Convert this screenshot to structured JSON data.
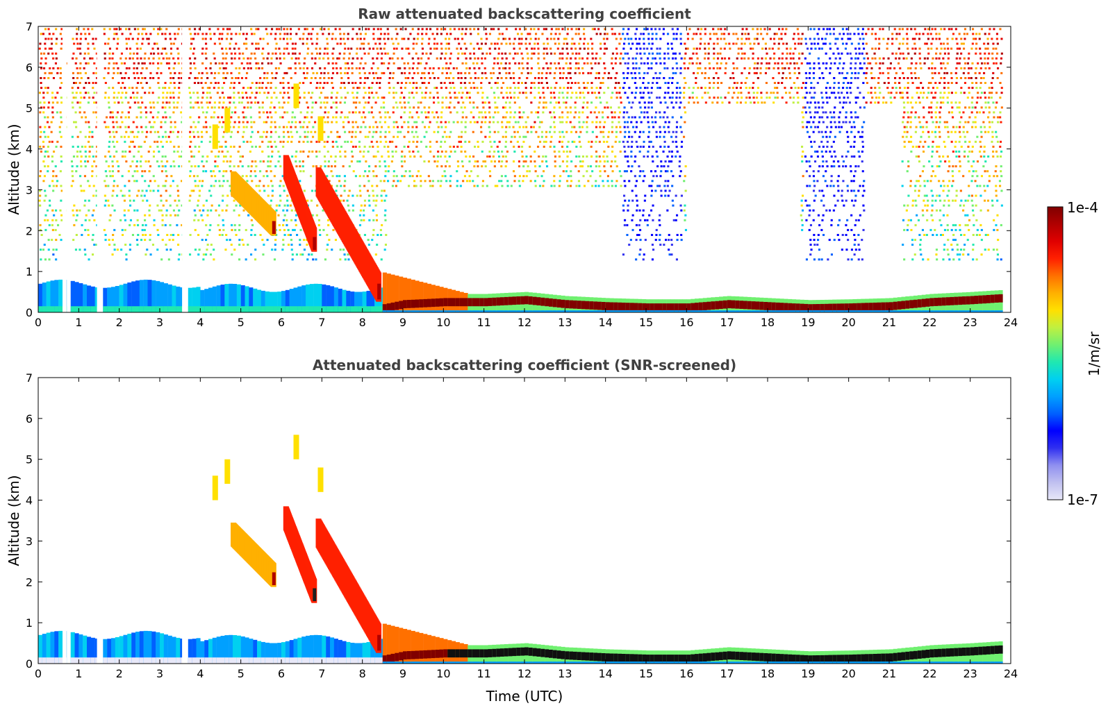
{
  "chart_data": [
    {
      "type": "heatmap",
      "title": "Raw attenuated backscattering coefficient",
      "xlabel": "",
      "ylabel": "Altitude (km)",
      "xlim": [
        0,
        24
      ],
      "ylim": [
        0,
        7
      ],
      "xticks": [
        "0",
        "1",
        "2",
        "3",
        "4",
        "5",
        "6",
        "7",
        "8",
        "9",
        "10",
        "11",
        "12",
        "13",
        "14",
        "15",
        "16",
        "17",
        "18",
        "19",
        "20",
        "21",
        "22",
        "23",
        "24"
      ],
      "yticks": [
        "0",
        "1",
        "2",
        "3",
        "4",
        "5",
        "6",
        "7"
      ],
      "features": {
        "boundary_layer": [
          [
            0,
            0.05
          ],
          [
            1,
            0.05
          ],
          [
            2,
            0.1
          ],
          [
            3,
            0.1
          ],
          [
            4,
            0.1
          ],
          [
            8.5,
            0.1
          ],
          [
            9,
            0.2
          ],
          [
            10,
            0.25
          ],
          [
            11,
            0.25
          ],
          [
            12,
            0.3
          ],
          [
            13,
            0.2
          ],
          [
            14,
            0.15
          ],
          [
            15,
            0.12
          ],
          [
            16,
            0.12
          ],
          [
            17,
            0.2
          ],
          [
            18,
            0.15
          ],
          [
            19,
            0.1
          ],
          [
            20,
            0.12
          ],
          [
            21,
            0.15
          ],
          [
            22,
            0.25
          ],
          [
            23,
            0.3
          ],
          [
            23.8,
            0.35
          ]
        ],
        "falling_layers": [
          [
            4.8,
            3.0,
            5.8,
            2.0
          ],
          [
            6.1,
            3.4,
            6.8,
            1.6
          ],
          [
            6.9,
            3.0,
            8.4,
            0.4
          ]
        ],
        "noise_band_top_km": 4.5
      }
    },
    {
      "type": "heatmap",
      "title": "Attenuated backscattering coefficient (SNR-screened)",
      "xlabel": "Time (UTC)",
      "ylabel": "Altitude (km)",
      "xlim": [
        0,
        24
      ],
      "ylim": [
        0,
        7
      ],
      "xticks": [
        "0",
        "1",
        "2",
        "3",
        "4",
        "5",
        "6",
        "7",
        "8",
        "9",
        "10",
        "11",
        "12",
        "13",
        "14",
        "15",
        "16",
        "17",
        "18",
        "19",
        "20",
        "21",
        "22",
        "23",
        "24"
      ],
      "yticks": [
        "0",
        "1",
        "2",
        "3",
        "4",
        "5",
        "6",
        "7"
      ]
    }
  ],
  "colorbar": {
    "label": "1/m/sr",
    "max_label": "1e-4",
    "min_label": "1e-7",
    "colors": [
      "#e8e8f8",
      "#c0c0f0",
      "#9090f0",
      "#3030f0",
      "#0000ff",
      "#0060ff",
      "#00a0ff",
      "#00d0f0",
      "#20e8b0",
      "#70f070",
      "#c0f040",
      "#ffe000",
      "#ffb000",
      "#ff7000",
      "#ff2000",
      "#e00000",
      "#b00000",
      "#800000"
    ]
  }
}
